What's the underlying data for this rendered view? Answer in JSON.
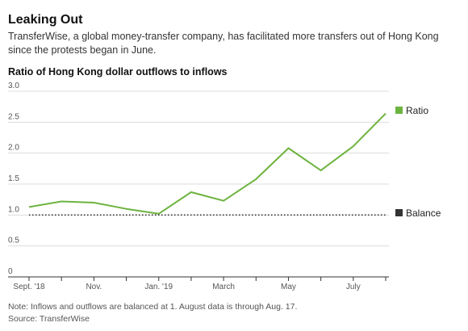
{
  "header": {
    "title": "Leaking Out",
    "subtitle": "TransferWise, a global money-transfer company, has facilitated more transfers out of Hong Kong since the protests began in June."
  },
  "footer": {
    "note": "Note: Inflows and outflows are balanced at 1. August data is through Aug. 17.",
    "source": "Source: TransferWise"
  },
  "chart_data": {
    "type": "line",
    "title": "Ratio of Hong Kong dollar outflows to inflows",
    "ylim": [
      0,
      3.0
    ],
    "y_ticks": [
      {
        "value": 0,
        "label": "0"
      },
      {
        "value": 0.5,
        "label": "0.5"
      },
      {
        "value": 1.0,
        "label": "1.0"
      },
      {
        "value": 1.5,
        "label": "1.5"
      },
      {
        "value": 2.0,
        "label": "2.0"
      },
      {
        "value": 2.5,
        "label": "2.5"
      },
      {
        "value": 3.0,
        "label": "3.0"
      }
    ],
    "x": [
      "2018-09",
      "2018-10",
      "2018-11",
      "2018-12",
      "2019-01",
      "2019-02",
      "2019-03",
      "2019-04",
      "2019-05",
      "2019-06",
      "2019-07",
      "2019-08"
    ],
    "x_tick_labels": [
      "Sept. '18",
      "",
      "Nov.",
      "",
      "Jan. '19",
      "",
      "March",
      "",
      "May",
      "",
      "July",
      ""
    ],
    "series": [
      {
        "name": "Ratio",
        "color": "#6db33f",
        "style": "solid",
        "values": [
          1.13,
          1.22,
          1.2,
          1.1,
          1.02,
          1.37,
          1.23,
          1.58,
          2.08,
          1.72,
          2.11,
          2.64
        ]
      },
      {
        "name": "Balance",
        "color": "#333333",
        "style": "dotted",
        "values": [
          1,
          1,
          1,
          1,
          1,
          1,
          1,
          1,
          1,
          1,
          1,
          1
        ]
      }
    ],
    "legend_placement": "right",
    "grid": true
  }
}
